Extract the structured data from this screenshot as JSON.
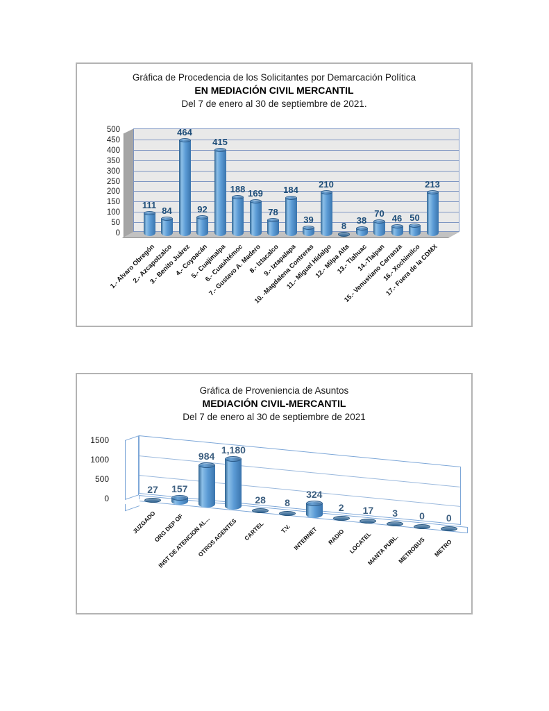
{
  "page": {
    "background": "#ffffff",
    "border_color": "#b3b3b3"
  },
  "colors": {
    "bar_fill": "#5b9bd5",
    "bar_edge": "#2c5d8d",
    "value_label_chart1": "#1f4e79",
    "value_label_chart2": "#3d5f80",
    "grid_chart1": "#7d95c2",
    "grid_chart2": "#9bb9dd",
    "wall_gray": "#a5a5a5",
    "floor_gray": "#c2c2c2",
    "wall_edge_blue": "#7da7d8"
  },
  "chart_data": [
    {
      "type": "bar",
      "subtype": "3d-cylinder",
      "title": "Gráfica de Procedencia de los Solicitantes por Demarcación Política",
      "subtitle": "EN MEDIACIÓN CIVIL MERCANTIL",
      "period": "Del 7 de enero al 30 de septiembre de 2021.",
      "categories": [
        "1.- Alvaro Obregón",
        "2.- Azcapotzalco",
        "3.- Benito Juárez",
        "4.- Coyoacán",
        "5.- Cuajimalpa",
        "6.- Cuauhtémoc",
        "7.- Gustavo A. Madero",
        "8.- Iztacalco",
        "9.- Iztapalapa",
        "10. -Magdalena  Contreras",
        "11.- Miguel Hidalgo",
        "12.- Milpa Alta",
        "13.- Tlahuac",
        "14.-Tlalpan",
        "15.- Venustiano Carranza",
        "16.- Xochimilco",
        "17.- Fuera de la CDMX"
      ],
      "values": [
        111,
        84,
        464,
        92,
        415,
        188,
        169,
        78,
        184,
        39,
        210,
        8,
        38,
        70,
        46,
        50,
        213
      ],
      "value_labels": [
        "111",
        "84",
        "464",
        "92",
        "415",
        "188",
        "169",
        "78",
        "184",
        "39",
        "210",
        "8",
        "38",
        "70",
        "46",
        "50",
        "213"
      ],
      "xlabel": "",
      "ylabel": "",
      "ylim": [
        0,
        500
      ],
      "ytick_step": 50,
      "yticks": [
        0,
        50,
        100,
        150,
        200,
        250,
        300,
        350,
        400,
        450,
        500
      ],
      "grid": true,
      "legend": "none"
    },
    {
      "type": "bar",
      "subtype": "3d-cylinder-perspective",
      "title": "Gráfica de Proveniencia de Asuntos",
      "subtitle": "MEDIACIÓN CIVIL-MERCANTIL",
      "period": "Del  7 de enero al  30 de septiembre  de  2021",
      "categories": [
        "JUZGADO",
        "ORG DEP OF",
        "INST DE ATENCION AL...",
        "OTROS AGENTES",
        "CARTEL",
        "T.V.",
        "INTERNET",
        "RADIO",
        "LOCATEL",
        "MANTA PUBL.",
        "METROBUS",
        "METRO"
      ],
      "values": [
        27,
        157,
        984,
        1180,
        28,
        8,
        324,
        2,
        17,
        3,
        0,
        0
      ],
      "value_labels": [
        "27",
        "157",
        "984",
        "1,180",
        "28",
        "8",
        "324",
        "2",
        "17",
        "3",
        "0",
        "0"
      ],
      "xlabel": "",
      "ylabel": "",
      "ylim": [
        0,
        1500
      ],
      "ytick_step": 500,
      "yticks": [
        0,
        500,
        1000,
        1500
      ],
      "grid": true,
      "legend": "none"
    }
  ]
}
